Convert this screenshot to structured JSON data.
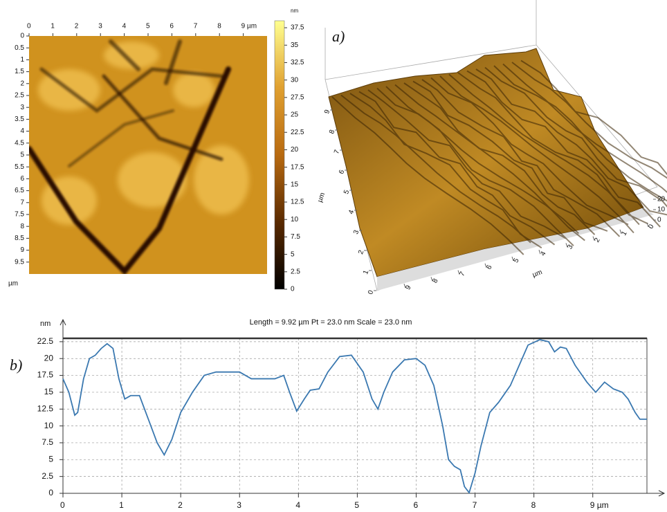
{
  "chart_data": [
    {
      "type": "heatmap",
      "xlim": [
        0,
        10
      ],
      "xticks": [
        0,
        1,
        2,
        3,
        4,
        5,
        6,
        7,
        8,
        {
          "value": 9,
          "label": "9 µm"
        }
      ],
      "ylim": [
        0,
        10
      ],
      "yticks": [
        0,
        0.5,
        1,
        1.5,
        2,
        2.5,
        3,
        3.5,
        4,
        4.5,
        5,
        5.5,
        6,
        6.5,
        7,
        7.5,
        8,
        8.5,
        9,
        9.5
      ],
      "y_label": "µm",
      "colorbar_label": "nm",
      "clim": [
        0,
        38.5
      ],
      "cticks": [
        0,
        2.5,
        5,
        7.5,
        10,
        12.5,
        15,
        17.5,
        20,
        22.5,
        25,
        27.5,
        30,
        32.5,
        35,
        37.5
      ],
      "colormap": [
        "#000000",
        "#5a2a00",
        "#b86a10",
        "#e0a030",
        "#ffff90"
      ]
    },
    {
      "type": "surface3d",
      "label": "a)",
      "x_label": "µm",
      "xticks": [
        0,
        1,
        2,
        3,
        4,
        5,
        6,
        7,
        8,
        9
      ],
      "y_label": "µm",
      "yticks": [
        0,
        1,
        2,
        3,
        4,
        5,
        6,
        7,
        8,
        9
      ],
      "zticks": [
        0,
        10,
        20
      ],
      "color": "#b8861c"
    },
    {
      "type": "line",
      "label": "b)",
      "title": "Length = 9.92 µm  Pt = 23.0 nm  Scale = 23.0 nm",
      "y_label": "nm",
      "xlim": [
        0,
        9.92
      ],
      "xticks": [
        0,
        1,
        2,
        3,
        4,
        5,
        6,
        7,
        8,
        {
          "value": 9,
          "label": "9 µm"
        }
      ],
      "ylim": [
        0,
        23
      ],
      "yticks": [
        0,
        2.5,
        5,
        7.5,
        10,
        12.5,
        15,
        17.5,
        20,
        22.5
      ],
      "grid": true,
      "color": "#3a78b0",
      "x": [
        0,
        0.1,
        0.2,
        0.25,
        0.35,
        0.45,
        0.55,
        0.65,
        0.75,
        0.85,
        0.95,
        1.05,
        1.15,
        1.3,
        1.45,
        1.6,
        1.72,
        1.85,
        2.0,
        2.2,
        2.4,
        2.6,
        2.8,
        3.0,
        3.2,
        3.4,
        3.6,
        3.75,
        3.85,
        3.97,
        4.1,
        4.2,
        4.35,
        4.5,
        4.7,
        4.9,
        5.1,
        5.25,
        5.35,
        5.45,
        5.6,
        5.8,
        6.0,
        6.15,
        6.3,
        6.45,
        6.55,
        6.65,
        6.75,
        6.82,
        6.9,
        7.0,
        7.1,
        7.25,
        7.4,
        7.6,
        7.75,
        7.9,
        8.1,
        8.25,
        8.35,
        8.45,
        8.55,
        8.7,
        8.9,
        9.05,
        9.2,
        9.35,
        9.5,
        9.6,
        9.72,
        9.8,
        9.92
      ],
      "values": [
        17,
        15,
        11.6,
        12,
        17,
        20,
        20.5,
        21.5,
        22.2,
        21.5,
        17,
        14,
        14.5,
        14.5,
        11,
        7.5,
        5.7,
        8,
        12,
        15,
        17.5,
        18,
        18,
        18,
        17,
        17,
        17,
        17.5,
        15,
        12.2,
        14,
        15.3,
        15.5,
        18,
        20.3,
        20.5,
        18,
        14,
        12.5,
        15,
        18,
        19.8,
        20,
        19,
        16,
        10,
        5,
        4,
        3.5,
        1,
        0.1,
        3,
        7,
        12,
        13.5,
        16,
        19,
        22,
        22.8,
        22.5,
        21,
        21.7,
        21.5,
        19,
        16.5,
        15,
        16.5,
        15.5,
        15,
        14,
        12,
        11,
        11
      ]
    }
  ]
}
